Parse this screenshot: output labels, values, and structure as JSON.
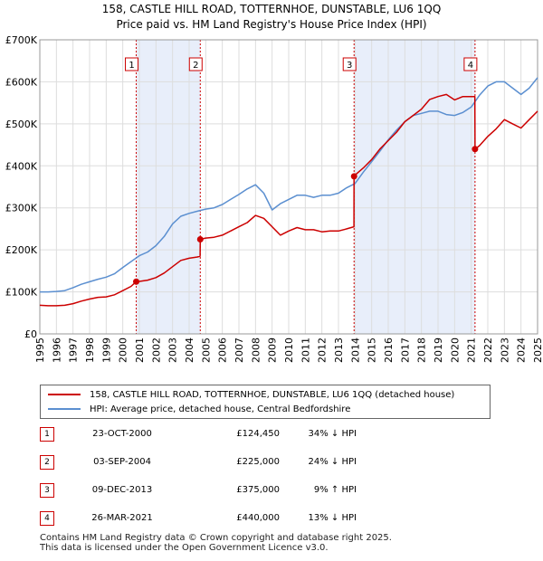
{
  "title_line1": "158, CASTLE HILL ROAD, TOTTERNHOE, DUNSTABLE, LU6 1QQ",
  "title_line2": "Price paid vs. HM Land Registry's House Price Index (HPI)",
  "colors": {
    "property": "#cc0000",
    "hpi": "#5b8fd0",
    "shade": "#e8eefa",
    "grid": "#dddddd"
  },
  "legend": {
    "property_label": "158, CASTLE HILL ROAD, TOTTERNHOE, DUNSTABLE, LU6 1QQ (detached house)",
    "hpi_label": "HPI: Average price, detached house, Central Bedfordshire"
  },
  "sales": [
    {
      "num": "1",
      "date": "23-OCT-2000",
      "price": "£124,450",
      "hpi": "34% ↓ HPI"
    },
    {
      "num": "2",
      "date": "03-SEP-2004",
      "price": "£225,000",
      "hpi": "24% ↓ HPI"
    },
    {
      "num": "3",
      "date": "09-DEC-2013",
      "price": "£375,000",
      "hpi": "9% ↑ HPI"
    },
    {
      "num": "4",
      "date": "26-MAR-2021",
      "price": "£440,000",
      "hpi": "13% ↓ HPI"
    }
  ],
  "footer_line1": "Contains HM Land Registry data © Crown copyright and database right 2025.",
  "footer_line2": "This data is licensed under the Open Government Licence v3.0.",
  "chart_data": {
    "type": "line",
    "title": "158, CASTLE HILL ROAD, TOTTERNHOE, DUNSTABLE, LU6 1QQ",
    "subtitle": "Price paid vs. HM Land Registry's House Price Index (HPI)",
    "xlabel": "",
    "ylabel": "",
    "xlim": [
      1995,
      2025
    ],
    "ylim": [
      0,
      700000
    ],
    "yticks": [
      0,
      100000,
      200000,
      300000,
      400000,
      500000,
      600000,
      700000
    ],
    "ytick_labels": [
      "£0",
      "£100K",
      "£200K",
      "£300K",
      "£400K",
      "£500K",
      "£600K",
      "£700K"
    ],
    "xticks": [
      1995,
      1996,
      1997,
      1998,
      1999,
      2000,
      2001,
      2002,
      2003,
      2004,
      2005,
      2006,
      2007,
      2008,
      2009,
      2010,
      2011,
      2012,
      2013,
      2014,
      2015,
      2016,
      2017,
      2018,
      2019,
      2020,
      2021,
      2022,
      2023,
      2024,
      2025
    ],
    "grid": true,
    "legend_position": "bottom",
    "shaded_periods": [
      [
        2000.81,
        2004.67
      ],
      [
        2013.94,
        2021.23
      ]
    ],
    "sale_markers": [
      {
        "label": "1",
        "x": 2000.81,
        "y": 124450
      },
      {
        "label": "2",
        "x": 2004.67,
        "y": 225000
      },
      {
        "label": "3",
        "x": 2013.94,
        "y": 375000
      },
      {
        "label": "4",
        "x": 2021.23,
        "y": 440000
      }
    ],
    "series": [
      {
        "name": "158, CASTLE HILL ROAD, TOTTERNHOE, DUNSTABLE, LU6 1QQ (detached house)",
        "color": "#cc0000",
        "x": [
          1995,
          1995.5,
          1996,
          1996.5,
          1997,
          1997.5,
          1998,
          1998.5,
          1999,
          1999.5,
          2000,
          2000.5,
          2000.81,
          2001,
          2001.5,
          2002,
          2002.5,
          2003,
          2003.5,
          2004,
          2004.5,
          2004.66,
          2004.67,
          2005,
          2005.5,
          2006,
          2006.5,
          2007,
          2007.5,
          2008,
          2008.5,
          2009,
          2009.5,
          2010,
          2010.5,
          2011,
          2011.5,
          2012,
          2012.5,
          2013,
          2013.5,
          2013.93,
          2013.94,
          2014,
          2014.5,
          2015,
          2015.5,
          2016,
          2016.5,
          2017,
          2017.5,
          2018,
          2018.5,
          2019,
          2019.5,
          2020,
          2020.5,
          2021.22,
          2021.23,
          2021.5,
          2022,
          2022.5,
          2023,
          2023.5,
          2024,
          2024.5,
          2025
        ],
        "values": [
          68000,
          67000,
          67000,
          68000,
          72000,
          78000,
          83000,
          87000,
          88000,
          93000,
          103000,
          113000,
          124450,
          125000,
          128000,
          134000,
          145000,
          160000,
          175000,
          180000,
          183000,
          185000,
          225000,
          228000,
          230000,
          235000,
          245000,
          255000,
          265000,
          282000,
          275000,
          255000,
          235000,
          245000,
          253000,
          248000,
          248000,
          243000,
          245000,
          245000,
          250000,
          255000,
          375000,
          378000,
          395000,
          415000,
          440000,
          460000,
          480000,
          505000,
          520000,
          535000,
          558000,
          565000,
          570000,
          557000,
          565000,
          565000,
          440000,
          448000,
          470000,
          488000,
          510000,
          500000,
          490000,
          510000,
          530000
        ]
      },
      {
        "name": "HPI: Average price, detached house, Central Bedfordshire",
        "color": "#5b8fd0",
        "x": [
          1995,
          1995.5,
          1996,
          1996.5,
          1997,
          1997.5,
          1998,
          1998.5,
          1999,
          1999.5,
          2000,
          2000.5,
          2001,
          2001.5,
          2002,
          2002.5,
          2003,
          2003.5,
          2004,
          2004.5,
          2005,
          2005.5,
          2006,
          2006.5,
          2007,
          2007.5,
          2008,
          2008.5,
          2009,
          2009.5,
          2010,
          2010.5,
          2011,
          2011.5,
          2012,
          2012.5,
          2013,
          2013.5,
          2014,
          2014.5,
          2015,
          2015.5,
          2016,
          2016.5,
          2017,
          2017.5,
          2018,
          2018.5,
          2019,
          2019.5,
          2020,
          2020.5,
          2021,
          2021.5,
          2022,
          2022.5,
          2023,
          2023.5,
          2024,
          2024.5,
          2025
        ],
        "values": [
          100000,
          100000,
          101000,
          103000,
          110000,
          118000,
          124000,
          130000,
          135000,
          143000,
          158000,
          172000,
          186000,
          195000,
          210000,
          232000,
          262000,
          280000,
          287000,
          292000,
          297000,
          300000,
          308000,
          320000,
          332000,
          345000,
          355000,
          335000,
          295000,
          310000,
          320000,
          330000,
          330000,
          325000,
          330000,
          330000,
          335000,
          348000,
          358000,
          385000,
          410000,
          435000,
          462000,
          485000,
          505000,
          520000,
          525000,
          530000,
          530000,
          522000,
          520000,
          527000,
          540000,
          568000,
          590000,
          600000,
          600000,
          585000,
          570000,
          585000,
          610000
        ]
      }
    ]
  }
}
